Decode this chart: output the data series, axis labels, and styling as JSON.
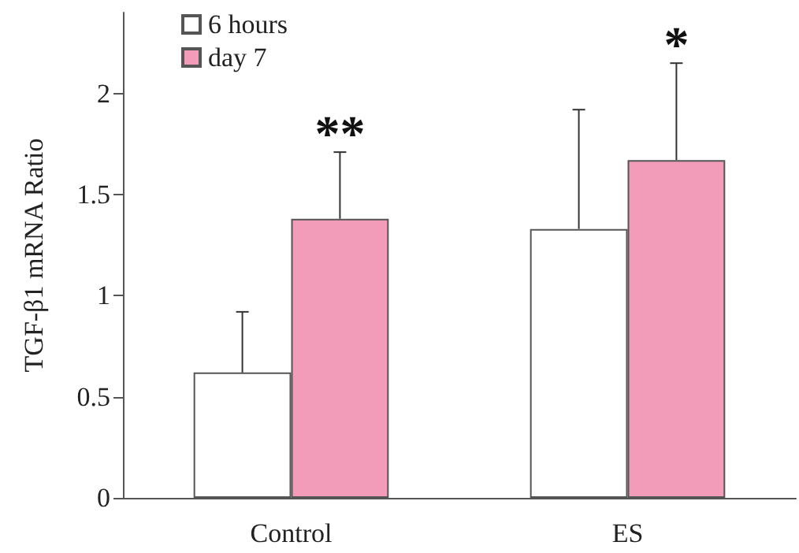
{
  "chart_data": {
    "type": "bar",
    "ylabel": "TGF-β1 mRNA Ratio",
    "categories": [
      "Control",
      "ES"
    ],
    "series": [
      {
        "name": "6 hours",
        "color": "#ffffff",
        "values": [
          0.62,
          1.33
        ],
        "errors": [
          [
            0.62,
            0.92
          ],
          [
            1.33,
            1.92
          ]
        ]
      },
      {
        "name": "day 7",
        "color": "#f29cb9",
        "values": [
          1.38,
          1.67
        ],
        "errors": [
          [
            1.38,
            1.71
          ],
          [
            1.67,
            2.15
          ]
        ]
      }
    ],
    "annotations": [
      "**",
      "*"
    ],
    "ylim": [
      0,
      2.4
    ],
    "yticks": [
      0,
      0.5,
      1,
      1.5,
      2
    ],
    "grid": false,
    "legend": "top left"
  }
}
